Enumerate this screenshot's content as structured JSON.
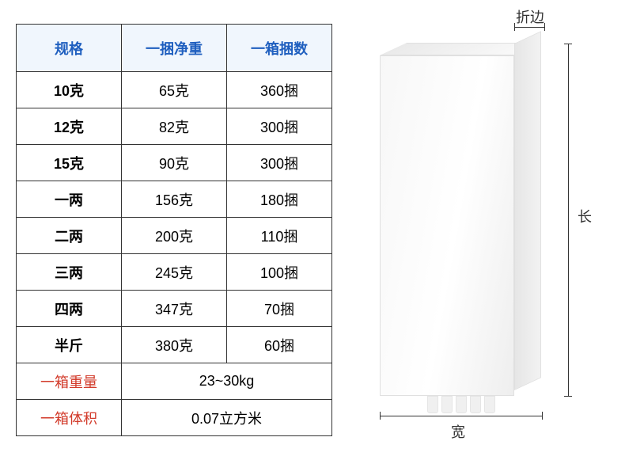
{
  "table": {
    "headers": [
      "规格",
      "一捆净重",
      "一箱捆数"
    ],
    "rows": [
      [
        "10克",
        "65克",
        "360捆"
      ],
      [
        "12克",
        "82克",
        "300捆"
      ],
      [
        "15克",
        "90克",
        "300捆"
      ],
      [
        "一两",
        "156克",
        "180捆"
      ],
      [
        "二两",
        "200克",
        "110捆"
      ],
      [
        "三两",
        "245克",
        "100捆"
      ],
      [
        "四两",
        "347克",
        "70捆"
      ],
      [
        "半斤",
        "380克",
        "60捆"
      ]
    ],
    "summary": [
      {
        "label": "一箱重量",
        "value": "23~30kg"
      },
      {
        "label": "一箱体积",
        "value": "0.07立方米"
      }
    ],
    "header_bg": "#f0f6fd",
    "header_color": "#1f5fbf",
    "border_color": "#333333",
    "summary_label_color": "#d23a2a"
  },
  "diagram": {
    "labels": {
      "length": "长",
      "width": "宽",
      "fold": "折边"
    },
    "box_gradient": [
      "#f7f7f7",
      "#ffffff",
      "#eeeeee"
    ],
    "side_gradient": [
      "#e6e6e6",
      "#f2f2f2"
    ],
    "line_color": "#333333",
    "label_fontsize": 18
  }
}
